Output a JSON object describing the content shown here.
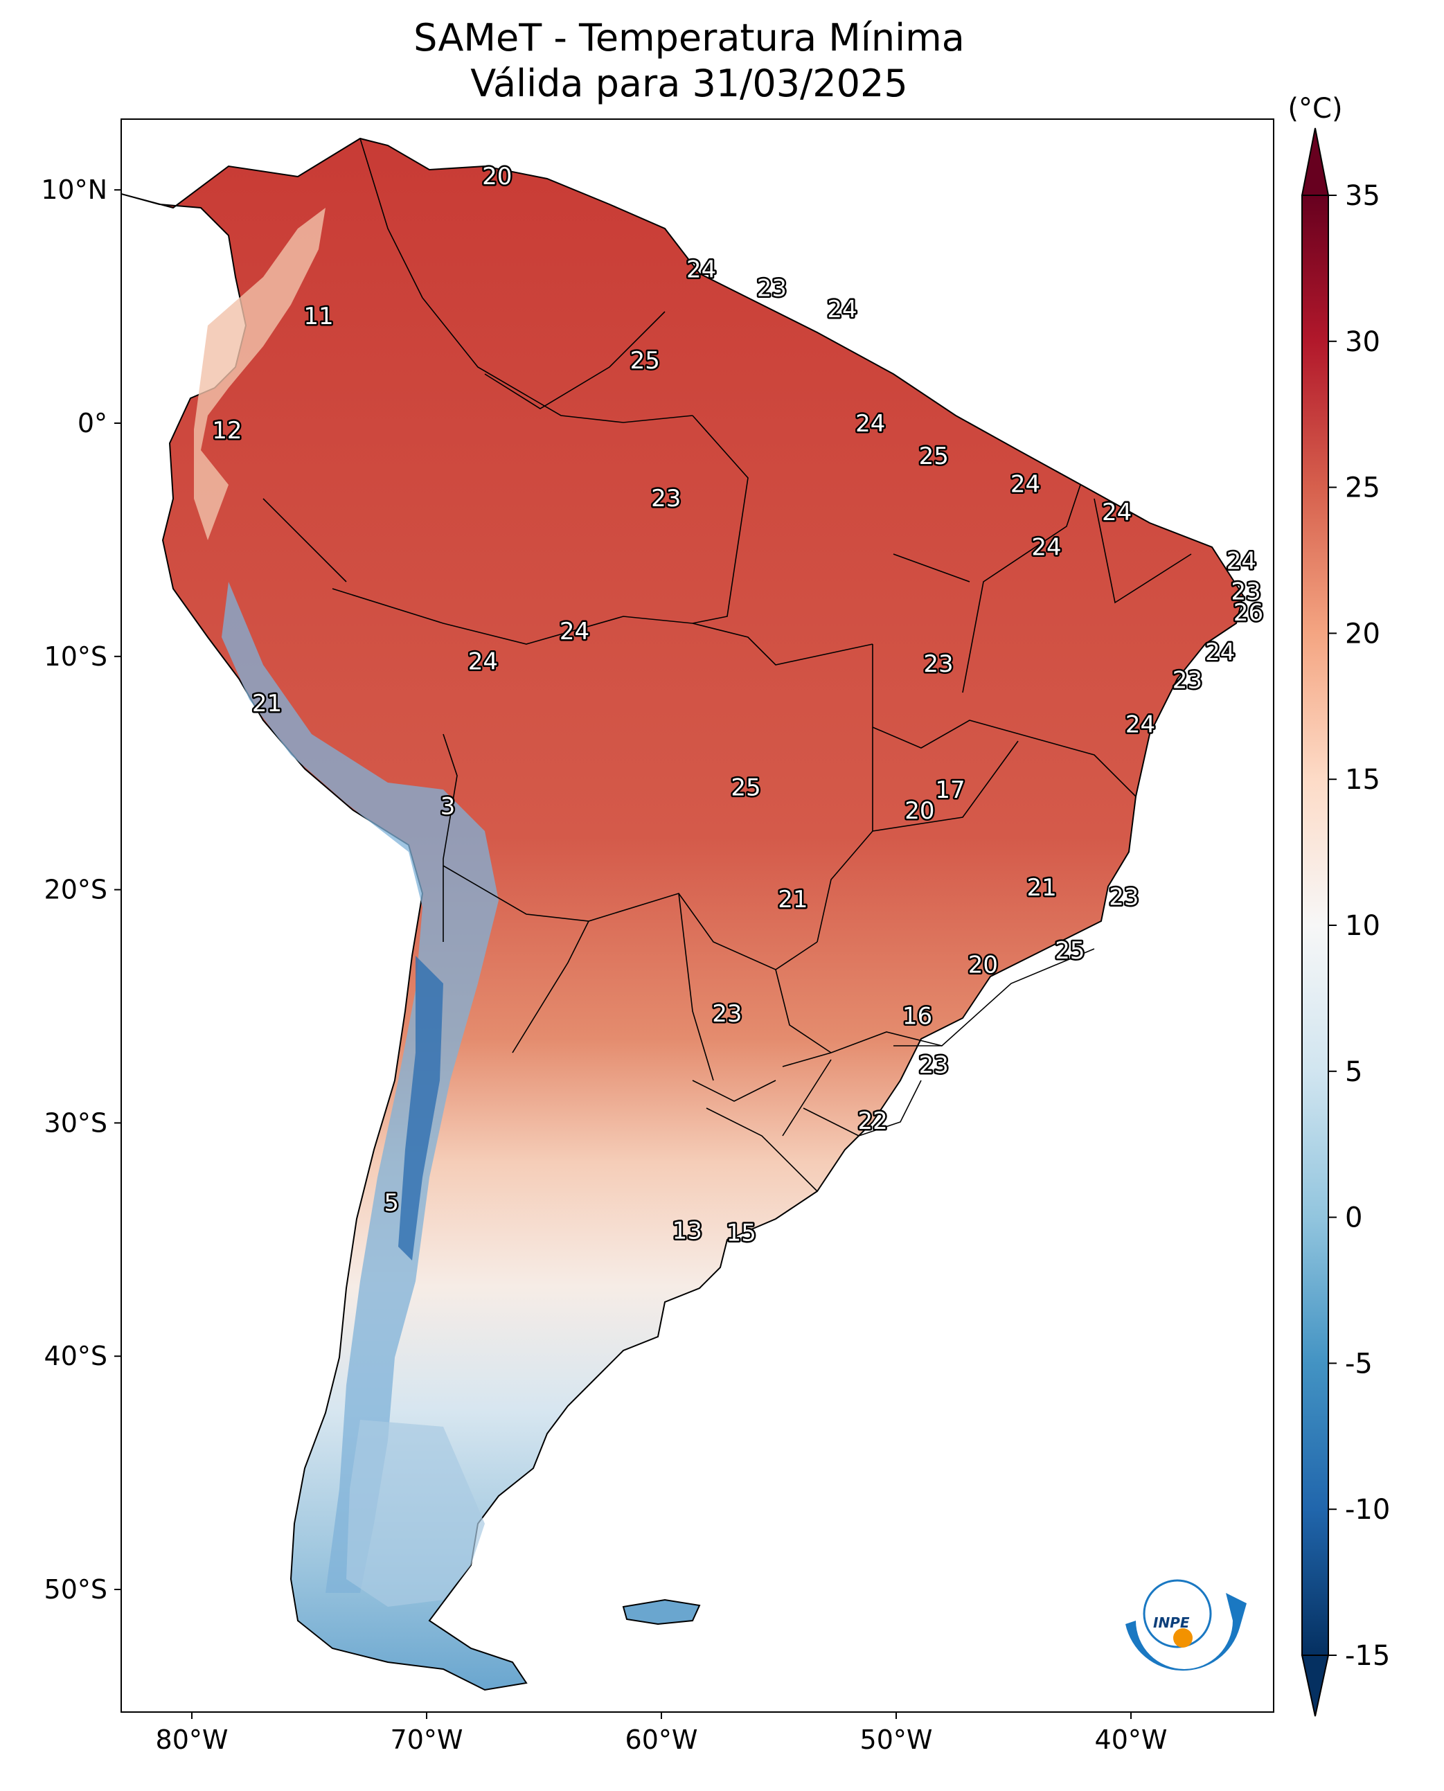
{
  "title": {
    "line1": "SAMeT - Temperatura Mínima",
    "line2": "Válida para 31/03/2025"
  },
  "axes": {
    "lon_ticks": [
      "80°W",
      "70°W",
      "60°W",
      "50°W",
      "40°W"
    ],
    "lat_ticks": [
      "10°N",
      "0°",
      "10°S",
      "20°S",
      "30°S",
      "40°S",
      "50°S"
    ]
  },
  "colorbar": {
    "unit": "(°C)",
    "ticks": [
      "35",
      "30",
      "25",
      "20",
      "15",
      "10",
      "5",
      "0",
      "-5",
      "-10",
      "-15"
    ],
    "range": [
      -15,
      35
    ],
    "colors": [
      "#053061",
      "#2166ac",
      "#4393c3",
      "#92c5de",
      "#d1e5f0",
      "#f7f7f7",
      "#fddbc7",
      "#f4a582",
      "#d6604d",
      "#b2182b",
      "#67001f"
    ]
  },
  "annotations": [
    {
      "text": "20",
      "lon": -67,
      "lat": 10.6
    },
    {
      "text": "11",
      "lon": -74.6,
      "lat": 4.6
    },
    {
      "text": "12",
      "lon": -78.5,
      "lat": -0.3
    },
    {
      "text": "24",
      "lon": -58.3,
      "lat": 6.6
    },
    {
      "text": "23",
      "lon": -55.3,
      "lat": 5.8
    },
    {
      "text": "24",
      "lon": -52.3,
      "lat": 4.9
    },
    {
      "text": "25",
      "lon": -60.7,
      "lat": 2.7
    },
    {
      "text": "24",
      "lon": -51.1,
      "lat": 0.0
    },
    {
      "text": "25",
      "lon": -48.4,
      "lat": -1.4
    },
    {
      "text": "23",
      "lon": -59.8,
      "lat": -3.2
    },
    {
      "text": "24",
      "lon": -44.5,
      "lat": -2.6
    },
    {
      "text": "24",
      "lon": -40.6,
      "lat": -3.8
    },
    {
      "text": "24",
      "lon": -43.6,
      "lat": -5.3
    },
    {
      "text": "24",
      "lon": -35.3,
      "lat": -5.9
    },
    {
      "text": "23",
      "lon": -35.1,
      "lat": -7.2
    },
    {
      "text": "26",
      "lon": -35.0,
      "lat": -8.1
    },
    {
      "text": "24",
      "lon": -63.7,
      "lat": -8.9
    },
    {
      "text": "24",
      "lon": -67.6,
      "lat": -10.2
    },
    {
      "text": "24",
      "lon": -36.2,
      "lat": -9.8
    },
    {
      "text": "23",
      "lon": -48.2,
      "lat": -10.3
    },
    {
      "text": "23",
      "lon": -37.6,
      "lat": -11.0
    },
    {
      "text": "21",
      "lon": -76.8,
      "lat": -12.0
    },
    {
      "text": "24",
      "lon": -39.6,
      "lat": -12.9
    },
    {
      "text": "25",
      "lon": -56.4,
      "lat": -15.6
    },
    {
      "text": "17",
      "lon": -47.7,
      "lat": -15.7
    },
    {
      "text": "3",
      "lon": -69.1,
      "lat": -16.4
    },
    {
      "text": "20",
      "lon": -49.0,
      "lat": -16.6
    },
    {
      "text": "21",
      "lon": -54.4,
      "lat": -20.4
    },
    {
      "text": "21",
      "lon": -43.8,
      "lat": -19.9
    },
    {
      "text": "23",
      "lon": -40.3,
      "lat": -20.3
    },
    {
      "text": "25",
      "lon": -42.6,
      "lat": -22.6
    },
    {
      "text": "20",
      "lon": -46.3,
      "lat": -23.2
    },
    {
      "text": "23",
      "lon": -57.2,
      "lat": -25.3
    },
    {
      "text": "16",
      "lon": -49.1,
      "lat": -25.4
    },
    {
      "text": "23",
      "lon": -48.4,
      "lat": -27.5
    },
    {
      "text": "22",
      "lon": -51.0,
      "lat": -29.9
    },
    {
      "text": "5",
      "lon": -71.5,
      "lat": -33.4
    },
    {
      "text": "13",
      "lon": -58.9,
      "lat": -34.6
    },
    {
      "text": "15",
      "lon": -56.6,
      "lat": -34.7
    }
  ],
  "logo": {
    "text": "INPE"
  }
}
